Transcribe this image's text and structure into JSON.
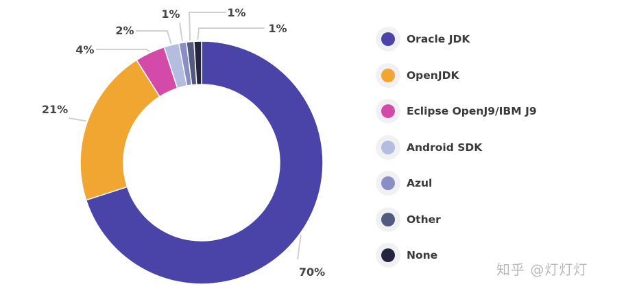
{
  "chart_data": {
    "type": "pie",
    "title": "",
    "categories": [
      "Oracle JDK",
      "OpenJDK",
      "Eclipse OpenJ9/IBM J9",
      "Android SDK",
      "Azul",
      "Other",
      "None"
    ],
    "values": [
      70,
      21,
      4,
      2,
      1,
      1,
      1
    ],
    "value_labels": [
      "70%",
      "21%",
      "4%",
      "2%",
      "1%",
      "1%",
      "1%"
    ],
    "colors": [
      "#4b44a8",
      "#f0a631",
      "#d44aa8",
      "#b4bde0",
      "#8a8ec4",
      "#545a7e",
      "#24243e"
    ],
    "donut": true,
    "legend_position": "right"
  },
  "watermark": "知乎 @灯灯灯"
}
